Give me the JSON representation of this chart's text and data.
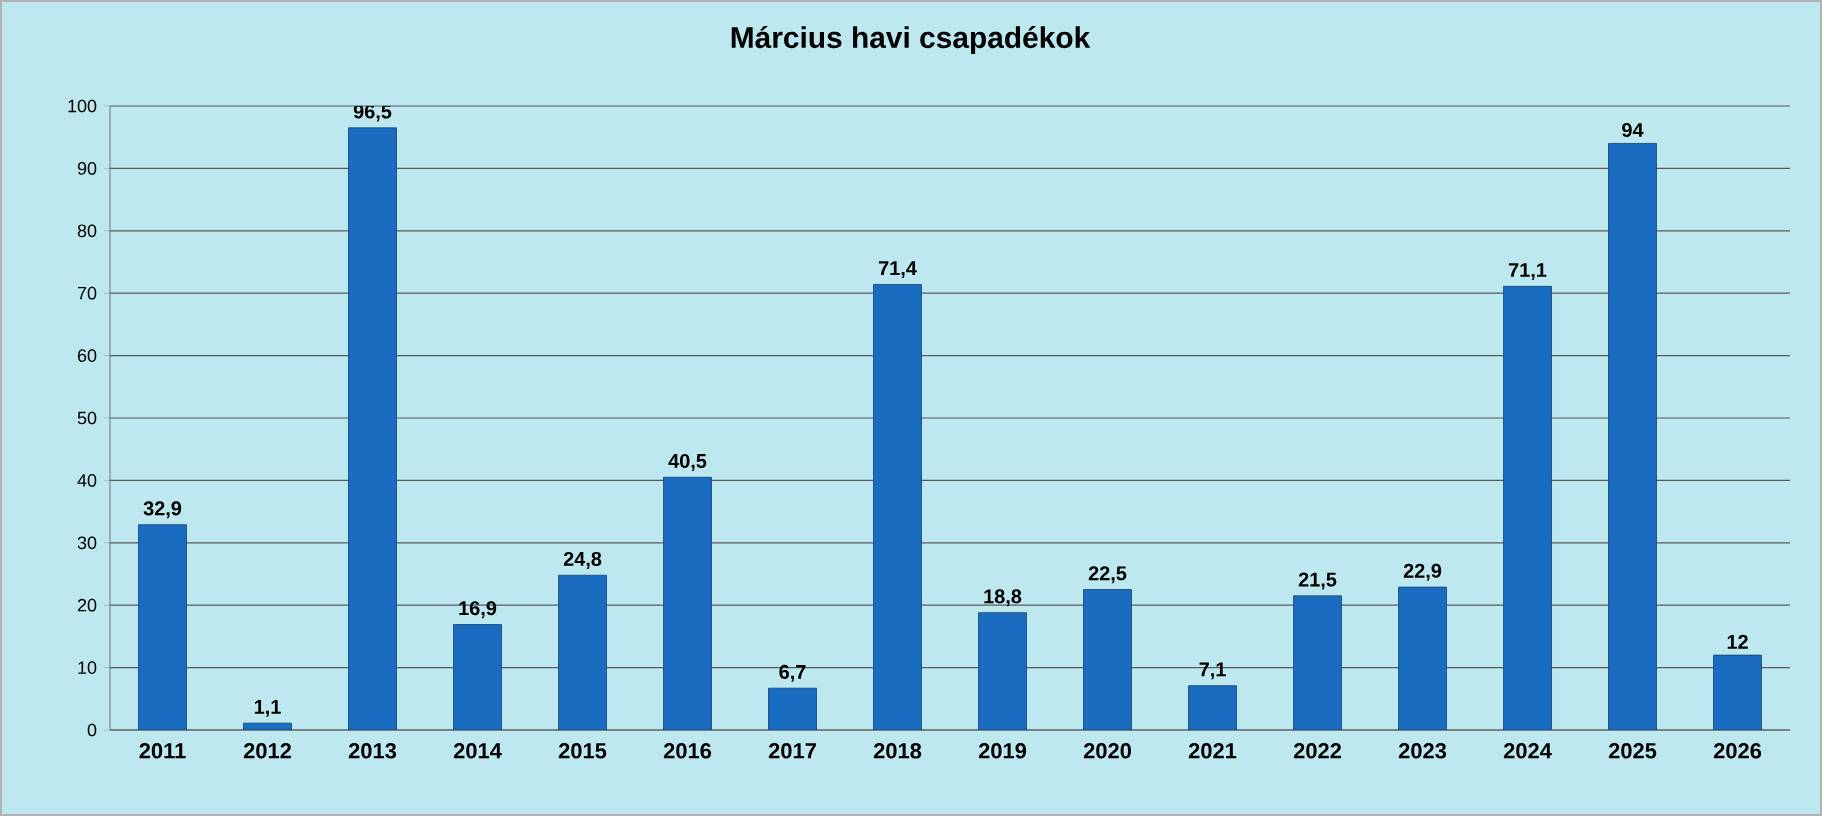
{
  "chart_data": {
    "type": "bar",
    "title": "Március havi csapadékok",
    "categories": [
      "2011",
      "2012",
      "2013",
      "2014",
      "2015",
      "2016",
      "2017",
      "2018",
      "2019",
      "2020",
      "2021",
      "2022",
      "2023",
      "2024",
      "2025",
      "2026"
    ],
    "values": [
      32.9,
      1.1,
      96.5,
      16.9,
      24.8,
      40.5,
      6.7,
      71.4,
      18.8,
      22.5,
      7.1,
      21.5,
      22.9,
      71.1,
      94,
      12
    ],
    "value_labels": [
      "32,9",
      "1,1",
      "96,5",
      "16,9",
      "24,8",
      "40,5",
      "6,7",
      "71,4",
      "18,8",
      "22,5",
      "7,1",
      "21,5",
      "22,9",
      "71,1",
      "94",
      "12"
    ],
    "color": "#1a6cc0",
    "ylim": [
      0,
      100
    ],
    "yticks": [
      0,
      10,
      20,
      30,
      40,
      50,
      60,
      70,
      80,
      90,
      100
    ],
    "grid": "y"
  }
}
